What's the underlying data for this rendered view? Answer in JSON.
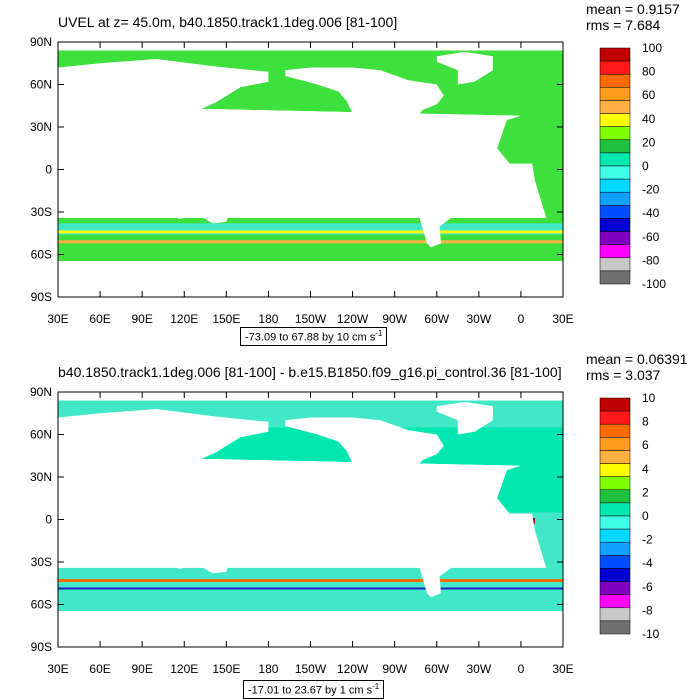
{
  "panels": [
    {
      "title": "UVEL at z=  45.0m, b40.1850.track1.1deg.006 [81-100]",
      "mean": "mean = 0.9157",
      "rms": "rms = 7.684",
      "range_text": "-73.09 to 67.88 by 10 cm s",
      "range_sup": "-1",
      "colorbar_labels": [
        "100",
        "80",
        "60",
        "40",
        "20",
        "0",
        "-20",
        "-40",
        "-60",
        "-80",
        "-100"
      ],
      "dominant_colors": {
        "ocean": "#3de03d",
        "equator_band": "#40e8c8",
        "land": "#ffffff"
      }
    },
    {
      "title": "b40.1850.track1.1deg.006 [81-100] - b.e15.B1850.f09_g16.pi_control.36 [81-100]",
      "mean": "mean = 0.06391",
      "rms": "rms = 3.037",
      "range_text": "-17.01 to 23.67 by 1 cm s",
      "range_sup": "-1",
      "colorbar_labels": [
        "10",
        "8",
        "6",
        "4",
        "2",
        "0",
        "-2",
        "-4",
        "-6",
        "-8",
        "-10"
      ],
      "dominant_colors": {
        "ocean": "#40e8c8",
        "positive": "#b00000",
        "negative": "#2020c0",
        "land": "#ffffff"
      }
    }
  ],
  "axes": {
    "lat_labels": [
      "90N",
      "60N",
      "30N",
      "0",
      "30S",
      "60S",
      "90S"
    ],
    "lon_labels": [
      "30E",
      "60E",
      "90E",
      "120E",
      "150E",
      "180",
      "150W",
      "120W",
      "90W",
      "60W",
      "30W",
      "0",
      "30E"
    ]
  },
  "colorbar_colors": [
    "#c00000",
    "#ff1a1a",
    "#ff6a00",
    "#ff9a1a",
    "#ffb040",
    "#ffff00",
    "#80ff00",
    "#20c040",
    "#00e8b0",
    "#40ffe8",
    "#00d8ff",
    "#10a0ff",
    "#0050ff",
    "#0000d0",
    "#8000c0",
    "#ff00ff",
    "#c8c8c8",
    "#707070"
  ]
}
